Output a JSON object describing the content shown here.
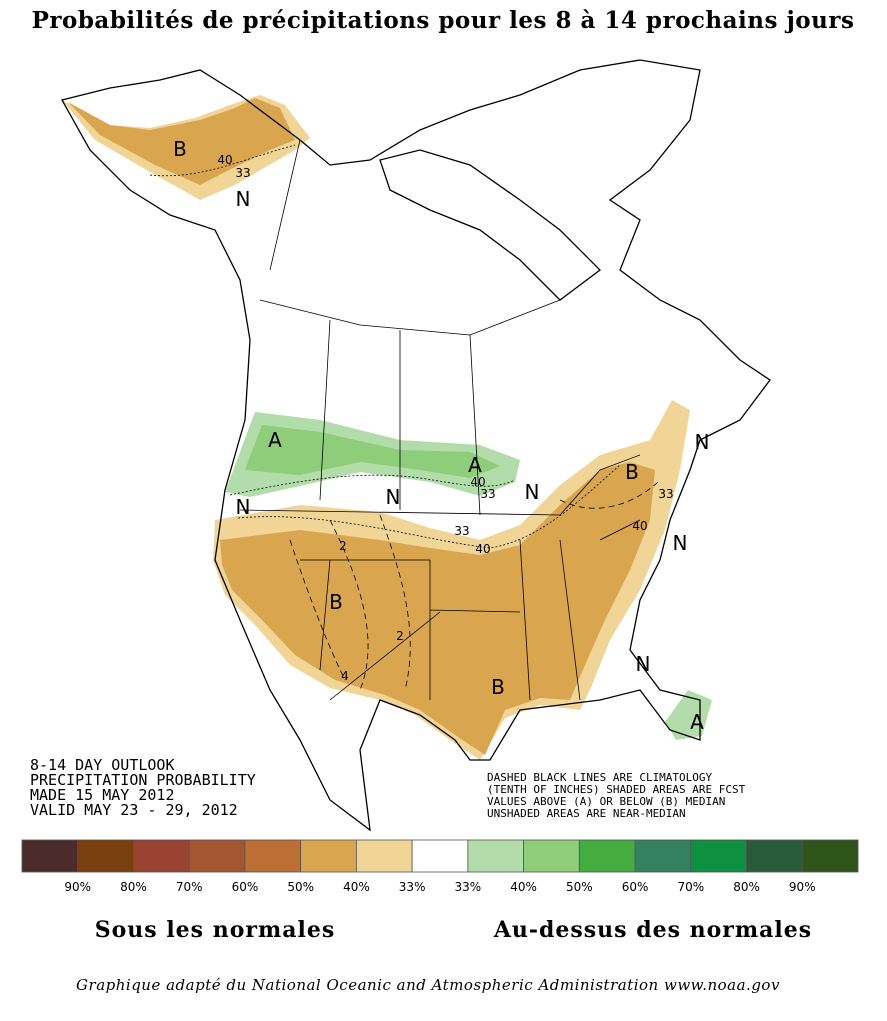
{
  "title": "Probabilités de précipitations pour les 8 à 14 prochains jours",
  "map_labels": [
    "B",
    "40",
    "33",
    "N",
    "A",
    "A",
    "40",
    "33",
    "N",
    "N",
    "N",
    "B",
    "N",
    "33",
    "40",
    "N",
    "33",
    "40",
    "B",
    "B",
    "N",
    "A",
    "2",
    "2",
    "4"
  ],
  "outlook": [
    "8-14 DAY OUTLOOK",
    "PRECIPITATION PROBABILITY",
    "MADE  15 MAY 2012",
    "VALID   MAY 23 - 29, 2012"
  ],
  "notes": [
    "DASHED BLACK LINES ARE CLIMATOLOGY",
    "(TENTH OF INCHES) SHADED AREAS ARE FCST",
    "VALUES ABOVE (A) OR BELOW (B) MEDIAN",
    "UNSHADED AREAS ARE NEAR-MEDIAN"
  ],
  "legend": {
    "colors": [
      "#4b2b2b",
      "#7a3f0e",
      "#9a4333",
      "#a45532",
      "#bd6f36",
      "#d9a64f",
      "#f1d597",
      "#ffffff",
      "#b2dcaa",
      "#8ecd7a",
      "#45ad3f",
      "#358061",
      "#0d9141",
      "#275b3a",
      "#2e5419"
    ],
    "labels": [
      "90%",
      "80%",
      "70%",
      "60%",
      "50%",
      "40%",
      "33%",
      "33%",
      "40%",
      "50%",
      "60%",
      "70%",
      "80%",
      "90%"
    ]
  },
  "below_label": "Sous les normales",
  "above_label": "Au-dessus des normales",
  "credit": "Graphique adapté du National Oceanic and Atmospheric Administration www.noaa.gov"
}
